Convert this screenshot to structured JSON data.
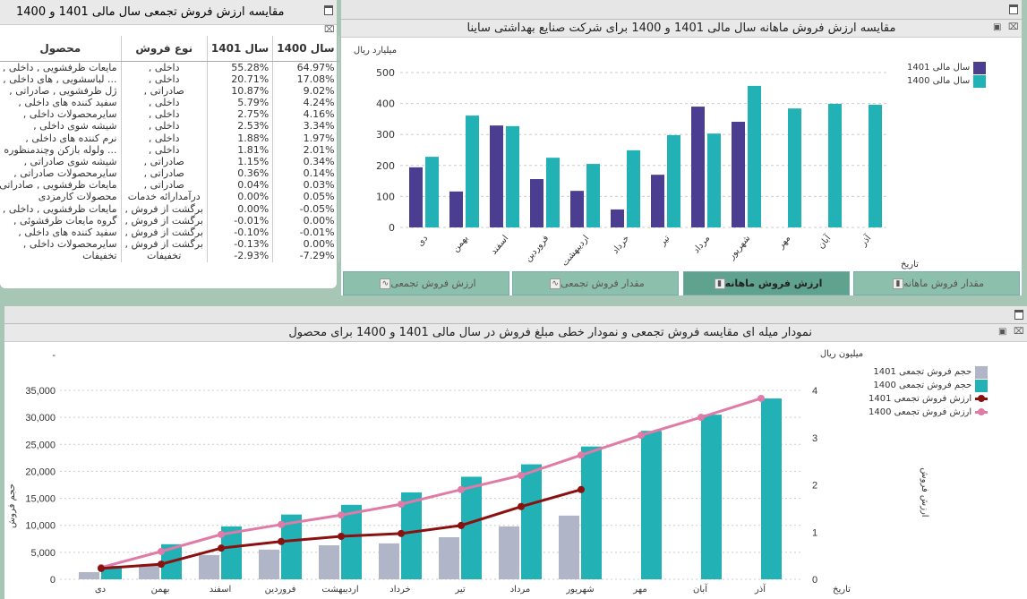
{
  "table_panel": {
    "title": "مقایسه ارزش فروش تجمعی سال مالی 1401 و 1400",
    "columns": [
      "محصول",
      "نوع فروش",
      "سال 1401",
      "سال 1400"
    ],
    "rows": [
      [
        "مایعات ظرفشویی , داخلی ,",
        "داخلی ,",
        "55.28%",
        "64.97%"
      ],
      [
        "... لباسشویی , های داخلی ,",
        "داخلی ,",
        "20.71%",
        "17.08%"
      ],
      [
        "ژل ظرفشویی , صادراتی ,",
        "صادراتی ,",
        "10.87%",
        "9.02%"
      ],
      [
        "سفید کننده های داخلی ,",
        "داخلی ,",
        "5.79%",
        "4.24%"
      ],
      [
        "سایرمحصولات داخلی ,",
        "داخلی ,",
        "2.75%",
        "4.16%"
      ],
      [
        "شیشه شوی داخلی ,",
        "داخلی ,",
        "2.53%",
        "3.34%"
      ],
      [
        "نرم کننده های داخلی ,",
        "داخلی ,",
        "1.88%",
        "1.97%"
      ],
      [
        "... ولوله بازکن وچندمنظوره",
        "داخلی ,",
        "1.81%",
        "2.01%"
      ],
      [
        "شیشه شوی صادراتی ,",
        "صادراتی ,",
        "1.15%",
        "0.34%"
      ],
      [
        "سایرمحصولات صادراتی ,",
        "صادراتی ,",
        "0.36%",
        "0.14%"
      ],
      [
        "مایعات ظرفشویی , صادراتی ,",
        "صادراتی ,",
        "0.04%",
        "0.03%"
      ],
      [
        "محصولات کارمزدی",
        "درآمدارائه خدمات",
        "0.00%",
        "0.05%"
      ],
      [
        "مایعات ظرفشویی , داخلی ,",
        "برگشت از فروش ,",
        "0.00%",
        "-0.05%"
      ],
      [
        "گروه مایعات ظرفشوئی ,",
        "برگشت از فروش ,",
        "-0.01%",
        "0.00%"
      ],
      [
        "سفید کننده های داخلی ,",
        "برگشت از فروش ,",
        "-0.10%",
        "-0.01%"
      ],
      [
        "سایرمحصولات داخلی ,",
        "برگشت از فروش ,",
        "-0.13%",
        "0.00%"
      ],
      [
        "تخفیفات",
        "تخفیفات",
        "-2.93%",
        "-7.29%"
      ]
    ]
  },
  "tabs": [
    {
      "label": "ارزش فروش تجمعی",
      "icon": "line-chart-icon",
      "active": false
    },
    {
      "label": "مقدار فروش تجمعی",
      "icon": "line-chart-icon",
      "active": false
    },
    {
      "label": "ارزش فروش ماهانه",
      "icon": "bar-chart-icon",
      "active": true
    },
    {
      "label": "مقدار فروش ماهانه",
      "icon": "bar-chart-icon",
      "active": false
    }
  ],
  "chart_data": [
    {
      "type": "bar",
      "title": "مقایسه ارزش فروش ماهانه سال مالی 1401 و 1400 برای شرکت صنایع بهداشتی ساینا",
      "ylabel": "میلیارد ریال",
      "xlabel": "تاریخ",
      "ylim": [
        0,
        500
      ],
      "yticks": [
        0,
        100,
        200,
        300,
        400,
        500
      ],
      "grid": true,
      "legend": "top-right",
      "categories": [
        "دی",
        "بهمن",
        "اسفند",
        "فروردین",
        "اردیبهشت",
        "خرداد",
        "تیر",
        "مرداد",
        "شهریور",
        "مهر",
        "آبان",
        "آذر"
      ],
      "series": [
        {
          "name": "سال مالی 1401",
          "color": "#4b3d8f",
          "values": [
            194,
            116,
            329,
            156,
            118,
            58,
            170,
            390,
            341,
            null,
            null,
            null
          ]
        },
        {
          "name": "سال مالی 1400",
          "color": "#22b2b5",
          "values": [
            228,
            361,
            327,
            225,
            205,
            249,
            298,
            303,
            457,
            384,
            399,
            396
          ]
        }
      ]
    },
    {
      "type": "bar+line",
      "title": "نمودار میله ای مقایسه فروش تجمعی و نمودار خطی مبلغ فروش در سال مالی 1401 و 1400 برای محصول",
      "ylabel": "حجم فروش",
      "y2label": "ارزش فروش",
      "y2unit": "میلیون ریال",
      "xlabel": "تاریخ",
      "ylim": [
        0,
        35000
      ],
      "yticks": [
        "0",
        "5,000",
        "10,000",
        "15,000",
        "20,000",
        "25,000",
        "30,000",
        "35,000"
      ],
      "ytop_label": "-",
      "y2lim": [
        0,
        4
      ],
      "y2ticks": [
        0,
        1,
        2,
        3,
        4
      ],
      "grid": true,
      "legend": "right",
      "categories": [
        "دی",
        "بهمن",
        "اسفند",
        "فروردین",
        "اردیبهشت",
        "خرداد",
        "تیر",
        "مرداد",
        "شهریور",
        "مهر",
        "آبان",
        "آذر"
      ],
      "bars": [
        {
          "name": "حجم فروش تجمعی 1401",
          "color": "#b0b5c8",
          "values": [
            1330,
            2650,
            4500,
            5500,
            6300,
            6650,
            7800,
            9800,
            11800,
            null,
            null,
            null
          ]
        },
        {
          "name": "حجم فروش تجمعی 1400",
          "color": "#22b2b5",
          "values": [
            2500,
            6500,
            9800,
            12000,
            13800,
            16100,
            19000,
            21300,
            24600,
            27500,
            30500,
            33500
          ]
        }
      ],
      "lines": [
        {
          "name": "ارزش فروش تجمعی 1401",
          "color": "#8b1010",
          "values": [
            0.23,
            0.32,
            0.66,
            0.8,
            0.91,
            0.97,
            1.14,
            1.54,
            1.9,
            null,
            null,
            null
          ]
        },
        {
          "name": "ارزش فروش تجمعی 1400",
          "color": "#e07aa6",
          "values": [
            0.25,
            0.59,
            0.95,
            1.16,
            1.36,
            1.59,
            1.9,
            2.2,
            2.63,
            3.05,
            3.43,
            3.83
          ]
        }
      ]
    }
  ]
}
